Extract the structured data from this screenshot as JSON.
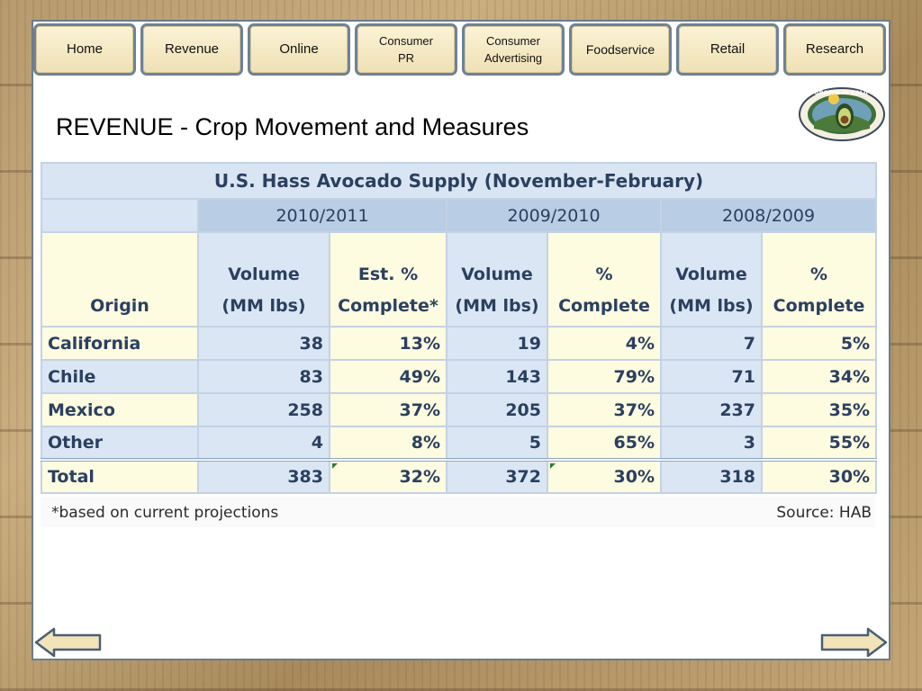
{
  "nav": {
    "tabs": [
      {
        "label": "Home"
      },
      {
        "label": "Revenue"
      },
      {
        "label": "Online"
      },
      {
        "label": "Consumer PR"
      },
      {
        "label": "Consumer Advertising"
      },
      {
        "label": "Foodservice"
      },
      {
        "label": "Retail"
      },
      {
        "label": "Research"
      }
    ]
  },
  "page": {
    "title": "REVENUE - Crop Movement and Measures",
    "logo_text": "HAND GROWN IN CALIFORNIA"
  },
  "table": {
    "title": "U.S. Hass Avocado Supply (November-February)",
    "periods": [
      "2010/2011",
      "2009/2010",
      "2008/2009"
    ],
    "headers": {
      "origin": "Origin",
      "vol1": "Volume",
      "vol2": "(MM lbs)",
      "est1": "Est. %",
      "est2": "Complete*",
      "pct1": "%",
      "pct2": "Complete"
    },
    "rows": [
      {
        "origin": "California",
        "values": [
          "38",
          "13%",
          "19",
          "4%",
          "7",
          "5%"
        ]
      },
      {
        "origin": "Chile",
        "values": [
          "83",
          "49%",
          "143",
          "79%",
          "71",
          "34%"
        ]
      },
      {
        "origin": "Mexico",
        "values": [
          "258",
          "37%",
          "205",
          "37%",
          "237",
          "35%"
        ]
      },
      {
        "origin": "Other",
        "values": [
          "4",
          "8%",
          "5",
          "65%",
          "3",
          "55%"
        ]
      }
    ],
    "total": {
      "origin": "Total",
      "values": [
        "383",
        "32%",
        "372",
        "30%",
        "318",
        "30%"
      ]
    },
    "footnote": "*based on current projections",
    "source": "Source:  HAB"
  },
  "colors": {
    "tab_border": "#6e8296",
    "tab_fill": "#fbf3d6",
    "table_text": "#2b4060",
    "volume_cell": "#dbe6f4",
    "percent_cell": "#fdfbe0"
  },
  "icons": {
    "prev": "left-arrow-icon",
    "next": "right-arrow-icon"
  }
}
